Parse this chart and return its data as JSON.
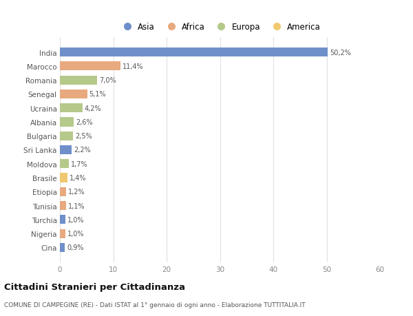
{
  "countries": [
    "India",
    "Marocco",
    "Romania",
    "Senegal",
    "Ucraina",
    "Albania",
    "Bulgaria",
    "Sri Lanka",
    "Moldova",
    "Brasile",
    "Etiopia",
    "Tunisia",
    "Turchia",
    "Nigeria",
    "Cina"
  ],
  "values": [
    50.2,
    11.4,
    7.0,
    5.1,
    4.2,
    2.6,
    2.5,
    2.2,
    1.7,
    1.4,
    1.2,
    1.1,
    1.0,
    1.0,
    0.9
  ],
  "labels": [
    "50,2%",
    "11,4%",
    "7,0%",
    "5,1%",
    "4,2%",
    "2,6%",
    "2,5%",
    "2,2%",
    "1,7%",
    "1,4%",
    "1,2%",
    "1,1%",
    "1,0%",
    "1,0%",
    "0,9%"
  ],
  "continents": [
    "Asia",
    "Africa",
    "Europa",
    "Africa",
    "Europa",
    "Europa",
    "Europa",
    "Asia",
    "Europa",
    "America",
    "Africa",
    "Africa",
    "Asia",
    "Africa",
    "Asia"
  ],
  "continent_colors": {
    "Asia": "#6e8fc9",
    "Africa": "#e8a97e",
    "Europa": "#b5c98a",
    "America": "#f0c96e"
  },
  "legend_order": [
    "Asia",
    "Africa",
    "Europa",
    "America"
  ],
  "title": "Cittadini Stranieri per Cittadinanza",
  "subtitle": "COMUNE DI CAMPEGINE (RE) - Dati ISTAT al 1° gennaio di ogni anno - Elaborazione TUTTITALIA.IT",
  "xlim": [
    0,
    60
  ],
  "xticks": [
    0,
    10,
    20,
    30,
    40,
    50,
    60
  ],
  "background_color": "#ffffff",
  "grid_color": "#e0e0e0"
}
